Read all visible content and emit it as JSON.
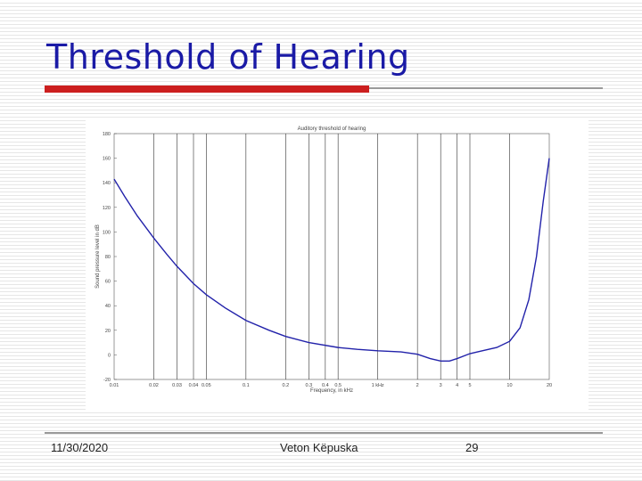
{
  "slide": {
    "title": "Threshold of Hearing",
    "footer": {
      "date": "11/30/2020",
      "author": "Veton Këpuska",
      "page": "29"
    }
  },
  "colors": {
    "title": "#1a1aa6",
    "accent_bar": "#cc1f1f",
    "curve": "#2222aa",
    "grid": "#333333"
  },
  "chart_data": {
    "type": "line",
    "title": "Auditory threshold of hearing",
    "xlabel": "Frequency, in kHz",
    "ylabel": "Sound pressure level in dB",
    "x_scale": "log",
    "xlim": [
      0.01,
      20
    ],
    "ylim": [
      -20,
      180
    ],
    "x_ticks": [
      0.01,
      0.02,
      0.03,
      0.04,
      0.05,
      0.1,
      0.2,
      0.3,
      0.4,
      0.5,
      1,
      2,
      3,
      4,
      5,
      10,
      20
    ],
    "x_tick_labels": [
      "0.01",
      "0.02",
      "0.03",
      "0.04",
      "0.05",
      "0.1",
      "0.2",
      "0.3",
      "0.4",
      "0.5",
      "1 kHz",
      "2",
      "3",
      "4",
      "5",
      "10",
      "20"
    ],
    "x_gridlines": [
      0.02,
      0.03,
      0.04,
      0.05,
      0.1,
      0.2,
      0.3,
      0.4,
      0.5,
      1,
      2,
      3,
      4,
      5,
      10
    ],
    "y_ticks": [
      -20,
      0,
      20,
      40,
      60,
      80,
      100,
      120,
      140,
      160,
      180
    ],
    "y_tick_labels": [
      "-20",
      "0",
      "20",
      "40",
      "60",
      "80",
      "100",
      "120",
      "140",
      "160",
      "180"
    ],
    "grid": "vertical",
    "series": [
      {
        "x": [
          0.01,
          0.012,
          0.015,
          0.02,
          0.025,
          0.03,
          0.04,
          0.05,
          0.07,
          0.1,
          0.15,
          0.2,
          0.3,
          0.5,
          0.7,
          1,
          1.5,
          2,
          2.5,
          3,
          3.5,
          4,
          5,
          6,
          8,
          10,
          12,
          14,
          16,
          18,
          20
        ],
        "y": [
          143,
          129,
          113,
          95,
          82,
          72,
          58,
          49,
          38,
          28,
          20,
          15,
          10,
          6,
          4.5,
          3.3,
          2.4,
          0.5,
          -3,
          -5,
          -5,
          -3,
          1,
          3,
          6,
          11,
          22,
          45,
          80,
          125,
          160
        ]
      }
    ]
  }
}
